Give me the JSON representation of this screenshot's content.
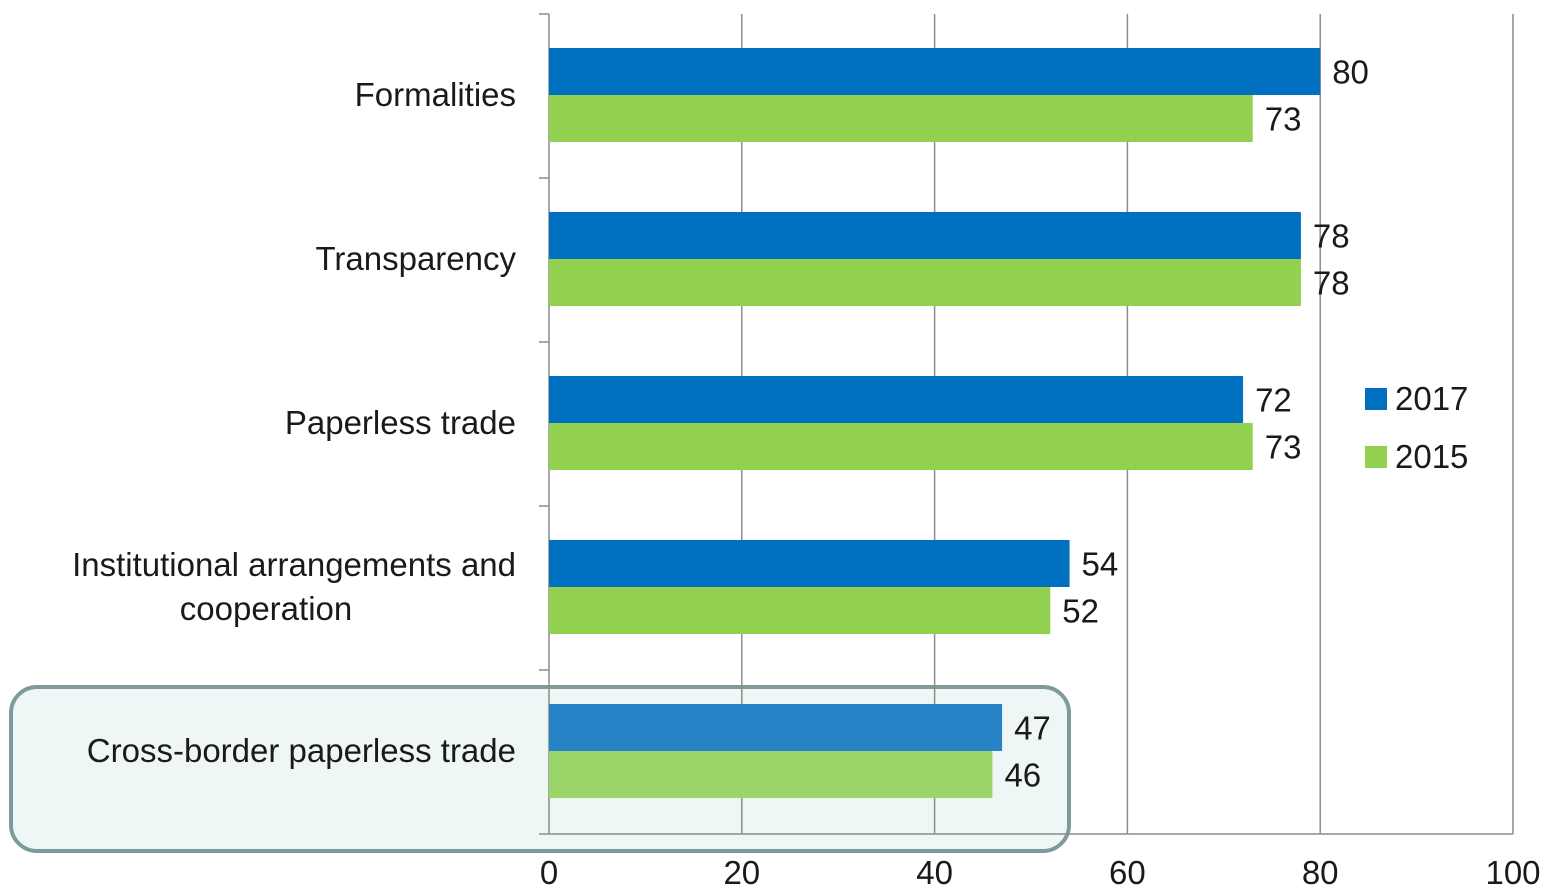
{
  "chart_data": {
    "type": "bar",
    "orientation": "horizontal",
    "categories": [
      "Formalities",
      "Transparency",
      "Paperless trade",
      "Institutional arrangements and cooperation",
      "Cross-border paperless trade"
    ],
    "category_lines": [
      [
        "Formalities"
      ],
      [
        "Transparency"
      ],
      [
        "Paperless trade"
      ],
      [
        "Institutional arrangements and",
        "cooperation"
      ],
      [
        "Cross-border paperless trade"
      ]
    ],
    "series": [
      {
        "name": "2017",
        "values": [
          80,
          78,
          72,
          54,
          47
        ],
        "color": "#0070c0",
        "highlight_color": "#2683c6"
      },
      {
        "name": "2015",
        "values": [
          73,
          78,
          73,
          52,
          46
        ],
        "color": "#92d050",
        "highlight_color": "#9cd66a"
      }
    ],
    "xlim": [
      0,
      100
    ],
    "ticks": [
      "0",
      "20",
      "40",
      "60",
      "80",
      "100"
    ],
    "tick_values": [
      0,
      20,
      40,
      60,
      80,
      100
    ],
    "grid": true,
    "grid_color": "#8c8c8c",
    "legend": "right",
    "highlighted_category": "Cross-border paperless trade",
    "highlight_fill": "#eef7f6",
    "highlight_border": "#7f9a9a",
    "title": "",
    "xlabel": "",
    "ylabel": ""
  }
}
